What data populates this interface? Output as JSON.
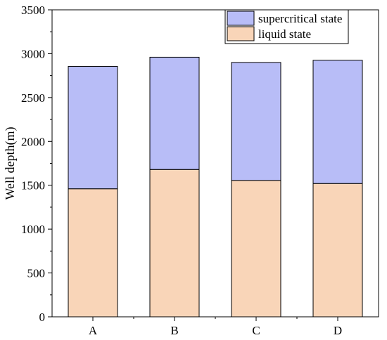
{
  "chart_data": {
    "type": "bar",
    "stacked": true,
    "categories": [
      "A",
      "B",
      "C",
      "D"
    ],
    "series": [
      {
        "name": "liquid state",
        "values": [
          1460,
          1680,
          1555,
          1520
        ],
        "color": "#f9d5b8"
      },
      {
        "name": "supercritical state",
        "values": [
          1395,
          1280,
          1345,
          1405
        ],
        "color": "#b8bdf7"
      }
    ],
    "xlabel": "",
    "ylabel": "Well depth(m)",
    "ylim": [
      0,
      3500
    ],
    "yticks": [
      0,
      500,
      1000,
      1500,
      2000,
      2500,
      3000,
      3500
    ],
    "grid": false,
    "legend_position": "top-right",
    "legend_order": [
      "supercritical state",
      "liquid state"
    ]
  }
}
